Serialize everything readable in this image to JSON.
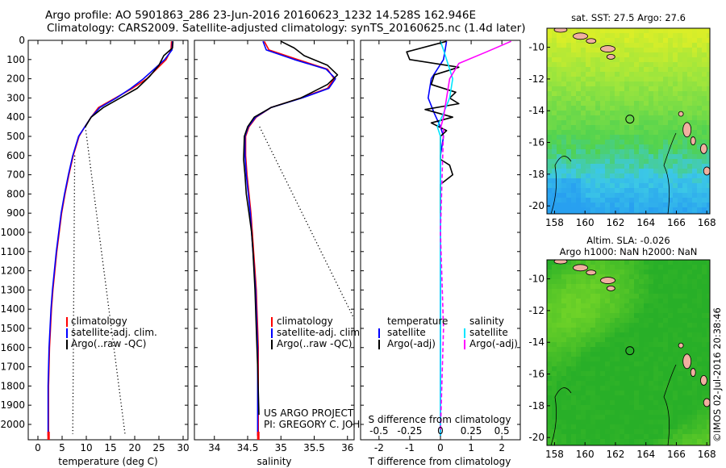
{
  "header": {
    "line1": "Argo profile: AO 5901863_286 23-Jun-2016 20160623_1232 14.528S 162.946E",
    "line2": "Climatology: CARS2009. Satellite-adjusted climatology: synTS_20160625.nc (1.4d later)"
  },
  "colors": {
    "climatology": "#ff0000",
    "satellite": "#0000ff",
    "argo": "#000000",
    "sat_salinity": "#00e5ff",
    "argo_salinity": "#ff00ff"
  },
  "chart_data": [
    {
      "type": "line",
      "panel": "temperature",
      "xlabel": "temperature (deg C)",
      "ylabel": "",
      "xlim": [
        -2,
        31
      ],
      "ylim": [
        2080,
        0
      ],
      "xticks": [
        "0",
        "5",
        "10",
        "15",
        "20",
        "25",
        "30"
      ],
      "yticks": [
        "0",
        "100",
        "200",
        "300",
        "400",
        "500",
        "600",
        "700",
        "800",
        "900",
        "1000",
        "1100",
        "1200",
        "1300",
        "1400",
        "1500",
        "1600",
        "1700",
        "1800",
        "1900",
        "2000"
      ],
      "legend": [
        "climatology",
        "satellite-adj. clim.",
        "Argo(..raw -QC)"
      ],
      "series": [
        {
          "name": "climatology",
          "color": "#ff0000",
          "x": [
            27.6,
            27.5,
            26.5,
            24.5,
            22.5,
            19.5,
            16.0,
            12.5,
            11.0,
            9.7,
            8.5,
            7.3,
            6.4,
            5.6,
            4.9,
            4.4,
            3.9,
            3.5,
            3.1,
            2.8,
            2.6,
            2.4,
            2.3,
            2.2,
            2.2
          ],
          "y": [
            5,
            50,
            100,
            150,
            200,
            250,
            300,
            350,
            400,
            450,
            500,
            600,
            700,
            800,
            900,
            1000,
            1100,
            1200,
            1300,
            1400,
            1500,
            1600,
            1700,
            1800,
            2060
          ]
        },
        {
          "name": "satellite-adj. clim.",
          "color": "#0000ff",
          "x": [
            27.8,
            27.7,
            26.2,
            24.0,
            21.8,
            19.2,
            16.2,
            12.8,
            11.0,
            9.7,
            8.4,
            7.2,
            6.3,
            5.5,
            4.8,
            4.3,
            3.8,
            3.4,
            3.0,
            2.7,
            2.5,
            2.3,
            2.2,
            2.1,
            2.1
          ],
          "y": [
            5,
            50,
            100,
            150,
            200,
            250,
            300,
            350,
            400,
            450,
            500,
            600,
            700,
            800,
            900,
            1000,
            1100,
            1200,
            1300,
            1400,
            1500,
            1600,
            1700,
            1800,
            2060
          ]
        },
        {
          "name": "Argo(..raw -QC)",
          "color": "#000000",
          "x": [
            27.9,
            27.8,
            26.0,
            25.0,
            23.0,
            20.5,
            17.0,
            13.5,
            11.0,
            9.8
          ],
          "y": [
            5,
            40,
            80,
            130,
            190,
            250,
            300,
            350,
            400,
            450
          ]
        },
        {
          "name": "",
          "color": "#000000",
          "dotted": true,
          "x": [
            9.8,
            18.0
          ],
          "y": [
            450,
            2050
          ]
        },
        {
          "name": "",
          "color": "#000000",
          "dotted": true,
          "x": [
            7.6,
            7.2
          ],
          "y": [
            600,
            2050
          ]
        }
      ]
    },
    {
      "type": "line",
      "panel": "salinity",
      "xlabel": "salinity",
      "ylabel": "",
      "xlim": [
        33.7,
        36.1
      ],
      "ylim": [
        2080,
        0
      ],
      "xticks": [
        "34",
        "34.5",
        "35",
        "35.5",
        "36"
      ],
      "legend": [
        "climatology",
        "satellite-adj. clim.",
        "Argo(..raw -QC)"
      ],
      "annotations": [
        "US ARGO PROJECT",
        "PI: GREGORY C. JOHNSON"
      ],
      "series": [
        {
          "name": "climatology",
          "color": "#ff0000",
          "x": [
            34.75,
            34.82,
            35.25,
            35.7,
            35.8,
            35.7,
            35.3,
            34.85,
            34.63,
            34.52,
            34.47,
            34.47,
            34.49,
            34.52,
            34.55,
            34.57,
            34.59,
            34.61,
            34.63,
            34.64,
            34.65,
            34.66,
            34.66
          ],
          "y": [
            5,
            50,
            100,
            150,
            200,
            250,
            300,
            350,
            400,
            450,
            500,
            600,
            700,
            800,
            900,
            1000,
            1100,
            1200,
            1300,
            1400,
            1500,
            1600,
            2060
          ]
        },
        {
          "name": "satellite-adj. clim.",
          "color": "#0000ff",
          "x": [
            34.73,
            34.78,
            35.2,
            35.68,
            35.82,
            35.72,
            35.32,
            34.85,
            34.62,
            34.51,
            34.46,
            34.46,
            34.48,
            34.51,
            34.54,
            34.56,
            34.58,
            34.6,
            34.62,
            34.63,
            34.64,
            34.65,
            34.65
          ],
          "y": [
            5,
            50,
            100,
            150,
            200,
            250,
            300,
            350,
            400,
            450,
            500,
            600,
            700,
            800,
            900,
            1000,
            1100,
            1200,
            1300,
            1400,
            1500,
            1600,
            2060
          ]
        },
        {
          "name": "Argo(..raw -QC)",
          "color": "#000000",
          "x": [
            35.0,
            35.2,
            35.35,
            35.7,
            35.85,
            35.7,
            35.3,
            34.85,
            34.6,
            34.5,
            34.45,
            34.44,
            34.46,
            34.48,
            34.52,
            34.56,
            34.58,
            34.61,
            34.63,
            34.65,
            34.67
          ],
          "y": [
            5,
            40,
            80,
            130,
            180,
            230,
            300,
            350,
            400,
            450,
            500,
            620,
            700,
            800,
            900,
            1000,
            1100,
            1300,
            1500,
            1700,
            1950
          ]
        },
        {
          "name": "",
          "color": "#000000",
          "dotted": true,
          "x": [
            34.68,
            36.1
          ],
          "y": [
            450,
            1450
          ]
        }
      ]
    },
    {
      "type": "line",
      "panel": "differences",
      "xlabel": "T difference from climatology",
      "xlabel_top": "S difference from climatology",
      "xlim": [
        -2.6,
        2.6
      ],
      "ylim": [
        2080,
        0
      ],
      "xticks_T": [
        "-2",
        "-1",
        "0",
        "1",
        "2"
      ],
      "xticks_S": [
        "-0.5",
        "-0.25",
        "0",
        "0.25",
        "0.5"
      ],
      "legend_temperature_title": "temperature",
      "legend_salinity_title": "salinity",
      "legend": [
        "satellite",
        "Argo(-adj)",
        "satellite",
        "Argo(-adj)"
      ],
      "series": [
        {
          "name": "temperature satellite",
          "color": "#0000ff",
          "x": [
            0.2,
            0.1,
            -0.3,
            -0.4,
            -0.2,
            0.0,
            0.1,
            0.0,
            0.0,
            0.0,
            0.0
          ],
          "y": [
            5,
            100,
            200,
            300,
            380,
            450,
            500,
            600,
            800,
            1200,
            2060
          ]
        },
        {
          "name": "temperature Argo(-adj)",
          "color": "#000000",
          "x": [
            0.2,
            -1.1,
            -1.0,
            0.6,
            -0.2,
            -0.3,
            0.5,
            0.3,
            0.6,
            -0.5,
            0.4,
            -0.3,
            0.2,
            0.0,
            0.0,
            0.0,
            0.3,
            0.4,
            0.0,
            0.0
          ],
          "y": [
            5,
            60,
            100,
            140,
            180,
            230,
            270,
            300,
            330,
            360,
            400,
            430,
            470,
            500,
            600,
            620,
            650,
            700,
            750,
            900
          ]
        },
        {
          "name": "salinity satellite",
          "color": "#00e5ff",
          "x": [
            0.0,
            0.1,
            0.2,
            0.4,
            0.3,
            0.1,
            -0.1,
            0.0,
            0.0,
            0.0,
            0.0
          ],
          "y": [
            5,
            50,
            100,
            200,
            300,
            380,
            450,
            500,
            600,
            1000,
            2060
          ]
        },
        {
          "name": "salinity Argo(-adj)",
          "color": "#ff00ff",
          "x": [
            2.3,
            1.5,
            0.6,
            0.3,
            0.2,
            0.1,
            0.0
          ],
          "y": [
            5,
            60,
            120,
            200,
            300,
            400,
            460
          ]
        },
        {
          "name": "",
          "color": "#ff00ff",
          "dashed": true,
          "x": [
            0.1,
            0.0,
            0.1,
            0.0
          ],
          "y": [
            460,
            1000,
            1500,
            2040
          ]
        }
      ]
    },
    {
      "type": "heatmap",
      "panel": "sst-map",
      "title": "sat. SST: 27.5 Argo: 27.6",
      "xticks": [
        "158",
        "160",
        "162",
        "164",
        "166",
        "168"
      ],
      "yticks": [
        "-10",
        "-12",
        "-14",
        "-16",
        "-18",
        "-20"
      ],
      "xlim": [
        157.5,
        168.2
      ],
      "ylim": [
        -20.5,
        -8.8
      ],
      "marker": {
        "lon": 162.946,
        "lat": -14.528
      }
    },
    {
      "type": "heatmap",
      "panel": "sla-map",
      "title": "Altim. SLA: -0.026",
      "subtitle": "Argo h1000: NaN h2000: NaN",
      "xticks": [
        "158",
        "160",
        "162",
        "164",
        "166",
        "168"
      ],
      "yticks": [
        "-10",
        "-12",
        "-14",
        "-16",
        "-18",
        "-20"
      ],
      "xlim": [
        157.5,
        168.2
      ],
      "ylim": [
        -20.5,
        -8.8
      ],
      "marker": {
        "lon": 162.946,
        "lat": -14.528
      }
    }
  ],
  "side_stamp": "©IMOS 02-Jul-2016 20:38:46"
}
